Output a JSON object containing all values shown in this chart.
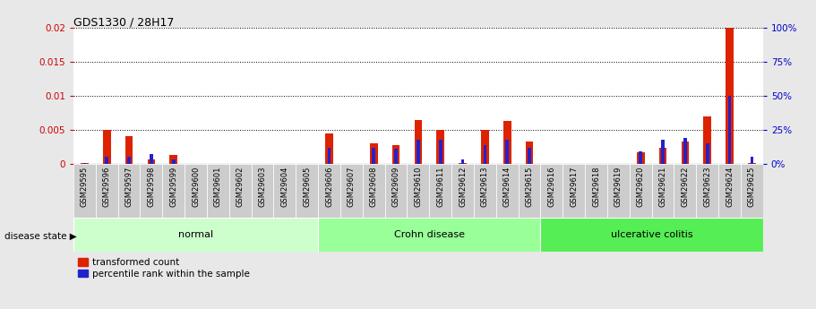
{
  "title": "GDS1330 / 28H17",
  "samples": [
    "GSM29595",
    "GSM29596",
    "GSM29597",
    "GSM29598",
    "GSM29599",
    "GSM29600",
    "GSM29601",
    "GSM29602",
    "GSM29603",
    "GSM29604",
    "GSM29605",
    "GSM29606",
    "GSM29607",
    "GSM29608",
    "GSM29609",
    "GSM29610",
    "GSM29611",
    "GSM29612",
    "GSM29613",
    "GSM29614",
    "GSM29615",
    "GSM29616",
    "GSM29617",
    "GSM29618",
    "GSM29619",
    "GSM29620",
    "GSM29621",
    "GSM29622",
    "GSM29623",
    "GSM29624",
    "GSM29625"
  ],
  "transformed_count": [
    0.0001,
    0.005,
    0.004,
    0.0007,
    0.0013,
    0.0,
    0.0,
    0.0,
    0.0,
    0.0,
    0.0,
    0.0044,
    0.0,
    0.003,
    0.0028,
    0.0065,
    0.005,
    0.0001,
    0.005,
    0.0063,
    0.0033,
    0.0,
    0.0,
    0.0,
    0.0,
    0.0017,
    0.0024,
    0.0033,
    0.007,
    0.02,
    0.0001
  ],
  "percentile_rank": [
    0.5,
    5.0,
    5.0,
    7.0,
    3.0,
    0.0,
    0.0,
    0.0,
    0.0,
    0.0,
    0.0,
    12.0,
    0.0,
    12.0,
    11.0,
    18.0,
    18.0,
    3.0,
    14.0,
    18.0,
    12.0,
    0.0,
    0.0,
    0.0,
    0.0,
    9.0,
    18.0,
    19.0,
    15.0,
    50.0,
    5.0
  ],
  "groups": [
    {
      "label": "normal",
      "start": 0,
      "end": 10,
      "color": "#ccffcc"
    },
    {
      "label": "Crohn disease",
      "start": 11,
      "end": 20,
      "color": "#99ff99"
    },
    {
      "label": "ulcerative colitis",
      "start": 21,
      "end": 30,
      "color": "#55ee55"
    }
  ],
  "ylim_left": [
    0,
    0.02
  ],
  "ylim_right": [
    0,
    100
  ],
  "yticks_left": [
    0,
    0.005,
    0.01,
    0.015,
    0.02
  ],
  "yticks_right": [
    0,
    25,
    50,
    75,
    100
  ],
  "bar_color_red": "#dd2200",
  "bar_color_blue": "#2222cc",
  "left_tick_color": "#cc0000",
  "right_tick_color": "#0000cc",
  "legend_red_label": "transformed count",
  "legend_blue_label": "percentile rank within the sample",
  "disease_state_label": "disease state",
  "figure_bg": "#e8e8e8",
  "plot_bg": "#ffffff",
  "tick_label_bg": "#cccccc",
  "band_grey": "#aaaaaa"
}
